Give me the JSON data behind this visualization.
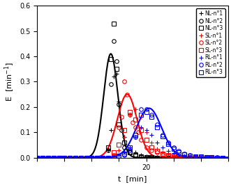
{
  "title": "",
  "xlabel": "t  [min]",
  "ylabel": "E  [min$^{-1}$]",
  "xlim": [
    0,
    35
  ],
  "ylim": [
    0,
    0.6
  ],
  "yticks": [
    0.0,
    0.1,
    0.2,
    0.3,
    0.4,
    0.5,
    0.6
  ],
  "xticks": [
    0,
    5,
    10,
    15,
    20,
    25,
    30,
    35
  ],
  "xtick_labels": [
    "",
    "",
    "",
    "",
    "20",
    "",
    "",
    ""
  ],
  "curves": {
    "black": {
      "mu": 13.5,
      "sigma": 1.3,
      "amplitude": 0.41
    },
    "red": {
      "mu": 16.5,
      "sigma": 1.8,
      "amplitude": 0.25
    },
    "blue": {
      "mu": 20.5,
      "sigma": 2.3,
      "amplitude": 0.195
    }
  },
  "NL1_x": [
    0,
    1,
    2,
    3,
    4,
    5,
    6,
    7,
    8,
    9,
    10,
    11,
    12,
    13,
    13.5,
    14,
    14.5,
    15,
    16,
    17,
    18,
    19,
    20,
    21,
    22,
    23,
    24,
    25,
    26,
    27,
    28,
    29,
    30,
    31,
    32
  ],
  "NL1_y": [
    0,
    0,
    0,
    0,
    0,
    0,
    0,
    0,
    0,
    0,
    0,
    0,
    0,
    0.03,
    0.11,
    0.32,
    0.33,
    0.22,
    0.08,
    0.04,
    0.02,
    0.01,
    0.005,
    0.003,
    0.001,
    0.001,
    0,
    0,
    0,
    0,
    0,
    0,
    0,
    0,
    0
  ],
  "NL2_x": [
    0,
    1,
    2,
    3,
    4,
    5,
    6,
    7,
    8,
    9,
    10,
    11,
    12,
    13,
    13.5,
    14,
    14.5,
    15,
    15.5,
    16,
    17,
    18,
    19,
    20,
    21,
    22,
    23,
    24,
    25,
    26,
    27,
    28,
    29,
    30
  ],
  "NL2_y": [
    0,
    0,
    0,
    0,
    0,
    0,
    0,
    0,
    0,
    0,
    0,
    0,
    0,
    0.03,
    0.29,
    0.46,
    0.38,
    0.21,
    0.11,
    0.04,
    0.02,
    0.01,
    0.005,
    0.002,
    0.001,
    0,
    0,
    0,
    0,
    0,
    0,
    0,
    0,
    0
  ],
  "NL3_x": [
    0,
    1,
    2,
    3,
    4,
    5,
    6,
    7,
    8,
    9,
    10,
    11,
    12,
    13,
    13.5,
    14,
    14.5,
    15,
    16,
    17,
    18,
    19,
    20,
    21,
    22,
    23,
    24,
    25,
    26,
    27,
    28,
    29,
    30
  ],
  "NL3_y": [
    0,
    0,
    0,
    0,
    0,
    0,
    0,
    0,
    0,
    0,
    0,
    0,
    0,
    0.04,
    0.39,
    0.53,
    0.35,
    0.13,
    0.06,
    0.02,
    0.01,
    0.005,
    0.002,
    0.001,
    0,
    0,
    0,
    0,
    0,
    0,
    0,
    0,
    0
  ],
  "SL1_x": [
    0,
    1,
    2,
    3,
    4,
    5,
    6,
    7,
    8,
    9,
    10,
    11,
    12,
    13,
    14,
    15,
    16,
    17,
    18,
    19,
    20,
    21,
    22,
    23,
    24,
    25,
    26,
    27,
    28,
    29,
    30,
    31,
    32,
    33,
    34
  ],
  "SL1_y": [
    0,
    0,
    0,
    0,
    0,
    0,
    0,
    0,
    0,
    0,
    0,
    0,
    0,
    0,
    0.01,
    0.03,
    0.08,
    0.17,
    0.19,
    0.16,
    0.1,
    0.06,
    0.035,
    0.02,
    0.013,
    0.008,
    0.005,
    0.003,
    0.002,
    0.001,
    0.001,
    0.001,
    0.001,
    0,
    0
  ],
  "SL2_x": [
    0,
    1,
    2,
    3,
    4,
    5,
    6,
    7,
    8,
    9,
    10,
    11,
    12,
    13,
    14,
    15,
    15.5,
    16,
    16.5,
    17,
    17.5,
    18,
    18.5,
    19,
    20,
    21,
    22,
    23,
    24,
    25,
    26,
    27,
    28,
    29,
    30,
    31,
    32,
    33
  ],
  "SL2_y": [
    0,
    0,
    0,
    0,
    0,
    0,
    0,
    0,
    0,
    0,
    0,
    0,
    0,
    0,
    0.01,
    0.12,
    0.16,
    0.3,
    0.25,
    0.17,
    0.14,
    0.12,
    0.1,
    0.07,
    0.04,
    0.03,
    0.02,
    0.01,
    0.008,
    0.005,
    0.003,
    0.002,
    0.001,
    0.001,
    0,
    0,
    0,
    0
  ],
  "SL3_x": [
    0,
    1,
    2,
    3,
    4,
    5,
    6,
    7,
    8,
    9,
    10,
    11,
    12,
    13,
    14,
    15,
    16,
    17,
    18,
    19,
    20,
    21,
    22,
    23,
    24,
    25,
    26,
    27,
    28,
    29,
    30,
    31,
    32,
    33
  ],
  "SL3_y": [
    0,
    0,
    0,
    0,
    0,
    0,
    0,
    0,
    0,
    0,
    0,
    0,
    0,
    0,
    0.02,
    0.05,
    0.11,
    0.18,
    0.15,
    0.11,
    0.07,
    0.04,
    0.025,
    0.015,
    0.01,
    0.006,
    0.004,
    0.002,
    0.001,
    0.001,
    0,
    0,
    0,
    0
  ],
  "RL1_x": [
    0,
    1,
    2,
    3,
    4,
    5,
    6,
    7,
    8,
    9,
    10,
    11,
    12,
    13,
    14,
    15,
    16,
    17,
    18,
    19,
    20,
    21,
    22,
    23,
    24,
    25,
    26,
    27,
    28,
    29,
    30,
    31,
    32,
    33,
    34
  ],
  "RL1_y": [
    0,
    0,
    0,
    0,
    0,
    0,
    0,
    0,
    0,
    0,
    0,
    0,
    0,
    0,
    0,
    0.01,
    0.02,
    0.04,
    0.08,
    0.12,
    0.11,
    0.09,
    0.06,
    0.04,
    0.027,
    0.018,
    0.012,
    0.008,
    0.005,
    0.003,
    0.002,
    0.001,
    0.001,
    0,
    0
  ],
  "RL2_x": [
    0,
    1,
    2,
    3,
    4,
    5,
    6,
    7,
    8,
    9,
    10,
    11,
    12,
    13,
    14,
    15,
    16,
    17,
    18,
    19,
    20,
    21,
    22,
    23,
    24,
    25,
    26,
    27,
    28,
    29,
    30,
    31,
    32,
    33,
    34
  ],
  "RL2_y": [
    0,
    0,
    0,
    0,
    0,
    0,
    0,
    0,
    0,
    0,
    0,
    0,
    0,
    0,
    0,
    0.005,
    0.01,
    0.03,
    0.08,
    0.19,
    0.19,
    0.17,
    0.13,
    0.09,
    0.06,
    0.04,
    0.025,
    0.015,
    0.009,
    0.005,
    0.003,
    0.002,
    0.001,
    0.001,
    0
  ],
  "RL3_x": [
    0,
    1,
    2,
    3,
    4,
    5,
    6,
    7,
    8,
    9,
    10,
    11,
    12,
    13,
    14,
    15,
    16,
    17,
    18,
    19,
    20,
    21,
    22,
    23,
    24,
    25,
    26,
    27,
    28,
    29,
    30,
    31,
    32,
    33,
    34
  ],
  "RL3_y": [
    0,
    0,
    0,
    0,
    0,
    0,
    0,
    0,
    0,
    0,
    0,
    0,
    0,
    0,
    0,
    0.008,
    0.015,
    0.04,
    0.09,
    0.17,
    0.18,
    0.16,
    0.12,
    0.085,
    0.055,
    0.035,
    0.022,
    0.013,
    0.008,
    0.005,
    0.003,
    0.002,
    0.001,
    0,
    0
  ],
  "legend_labels": [
    "NL-n°1",
    "NL-n°2",
    "NL-n°3",
    "SL-n°1",
    "SL-n°2",
    "SL-n°3",
    "RL-n°1",
    "RL-n°2",
    "RL-n°3"
  ]
}
